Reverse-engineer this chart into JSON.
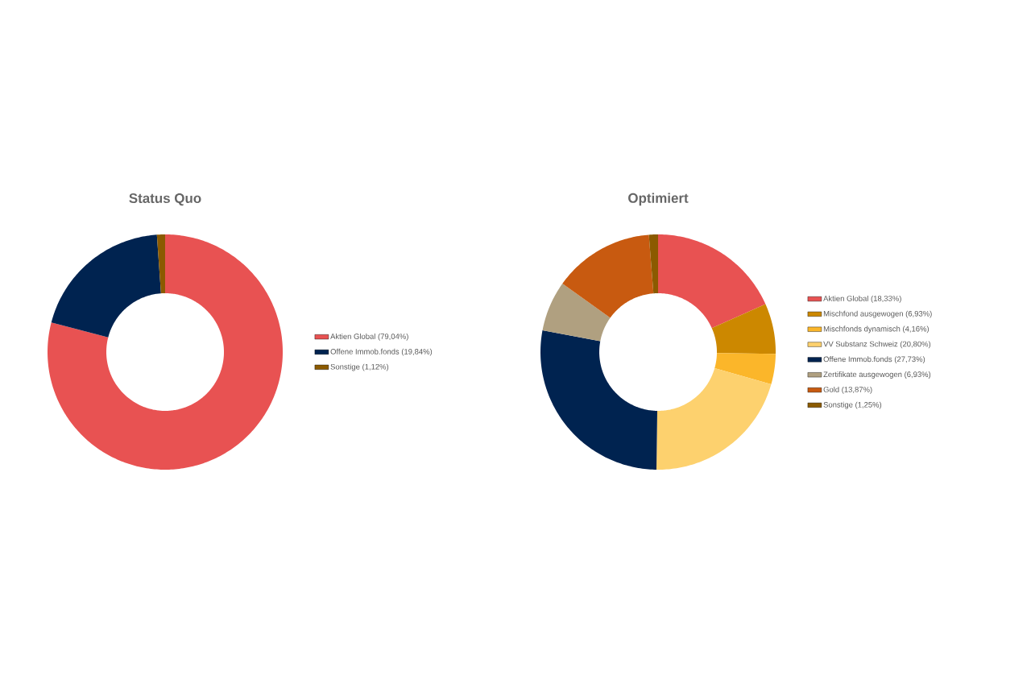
{
  "chart_data": [
    {
      "type": "donut",
      "title": "Status Quo",
      "legend": "right",
      "categories": [
        "Aktien Global (79,04%)",
        "Offene Immob.fonds (19,84%)",
        "Sonstige (1,12%)"
      ],
      "values": [
        79.04,
        19.84,
        1.12
      ],
      "colors": [
        "#e85252",
        "#002350",
        "#8b5a00"
      ]
    },
    {
      "type": "donut",
      "title": "Optimiert",
      "legend": "right",
      "categories": [
        "Aktien Global (18,33%)",
        "Mischfond ausgewogen (6,93%)",
        "Mischfonds dynamisch (4,16%)",
        "VV Substanz Schweiz (20,80%)",
        "Offene Immob.fonds (27,73%)",
        "Zertifikate ausgewogen (6,93%)",
        "Gold (13,87%)",
        "Sonstige (1,25%)"
      ],
      "values": [
        18.33,
        6.93,
        4.16,
        20.8,
        27.73,
        6.93,
        13.87,
        1.25
      ],
      "colors": [
        "#e85252",
        "#cc8800",
        "#fbb62a",
        "#fdd16e",
        "#002350",
        "#b0a080",
        "#c85a10",
        "#8b5a00"
      ]
    }
  ]
}
